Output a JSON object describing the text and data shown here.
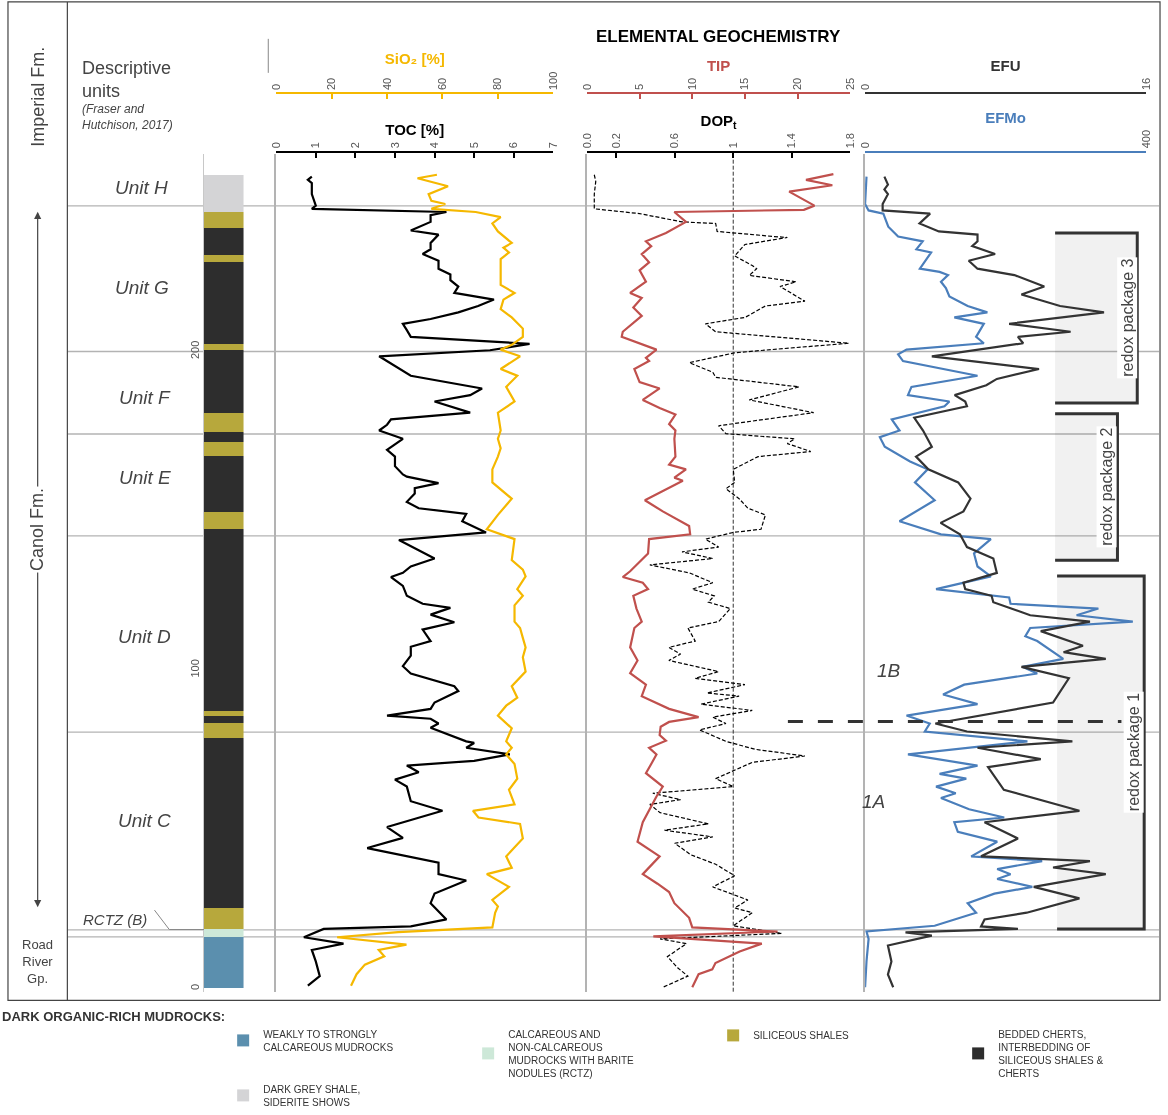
{
  "chart_data": [
    {
      "type": "bar",
      "stacked": true,
      "categories": [
        null
      ],
      "ylim": [
        -1,
        262
      ],
      "yticks": [
        0,
        100,
        200
      ],
      "tick_labels": "y",
      "legend": "bottom",
      "legend_title": "DARK ORGANIC-RICH MUDROCKS:",
      "annotations": [
        "Descriptive units",
        "(Fraser and Hutchison, 2017)",
        "Imperial Fm.",
        "Canol Fm.",
        "Unit H",
        "Unit G",
        "Unit F",
        "Unit E",
        "Unit D",
        "Unit C",
        "RCTZ (B)",
        "Road River Gp."
      ],
      "ref_lines": [
        {
          "axis": "y",
          "value": 245.7,
          "color": "#b3b3b3"
        },
        {
          "axis": "y",
          "value": 200.0,
          "color": "#b3b3b3"
        },
        {
          "axis": "y",
          "value": 174.1,
          "color": "#b3b3b3"
        },
        {
          "axis": "y",
          "value": 142.1,
          "color": "#b3b3b3"
        },
        {
          "axis": "y",
          "value": 80.5,
          "color": "#b3b3b3"
        },
        {
          "axis": "y",
          "value": 18.4,
          "color": "#b3b3b3"
        },
        {
          "axis": "y",
          "value": 16.2,
          "color": "#b3b3b3"
        }
      ],
      "series": [
        {
          "name": "WEAKLY TO STRONGLY CALCAREOUS MUDROCKS",
          "color": "#5b8fae",
          "values": [
            16.2
          ]
        },
        {
          "name": "CALCAREOUS AND NON-CALCAREOUS MUDROCKS WITH BARITE NODULES (RCTZ)",
          "color": "#cde8d8",
          "values": [
            2.4
          ]
        },
        {
          "name": "SILICEOUS SHALES",
          "color": "#b7a83c",
          "values": [
            6.7
          ]
        },
        {
          "name": "BEDDED CHERTS, INTERBEDDING OF SILICEOUS SHALES & CHERTS",
          "color": "#2d2d2d",
          "values": [
            53.4
          ]
        },
        {
          "color": "#b7a83c",
          "values": [
            4.5
          ]
        },
        {
          "color": "#2d2d2d",
          "values": [
            2.2
          ]
        },
        {
          "color": "#b7a83c",
          "values": [
            1.8
          ]
        },
        {
          "color": "#2d2d2d",
          "values": [
            57.0
          ]
        },
        {
          "color": "#b7a83c",
          "values": [
            5.5
          ]
        },
        {
          "color": "#2d2d2d",
          "values": [
            17.4
          ]
        },
        {
          "color": "#b7a83c",
          "values": [
            4.5
          ]
        },
        {
          "color": "#2d2d2d",
          "values": [
            3.1
          ]
        },
        {
          "color": "#b7a83c",
          "values": [
            6.1
          ]
        },
        {
          "color": "#2d2d2d",
          "values": [
            19.8
          ]
        },
        {
          "color": "#b7a83c",
          "values": [
            1.8
          ]
        },
        {
          "color": "#2d2d2d",
          "values": [
            25.6
          ]
        },
        {
          "color": "#b7a83c",
          "values": [
            2.2
          ]
        },
        {
          "color": "#2d2d2d",
          "values": [
            8.5
          ]
        },
        {
          "color": "#b7a83c",
          "values": [
            5.2
          ]
        },
        {
          "name": "DARK GREY SHALE, SIDERITE SHOWS",
          "color": "#d4d4d6",
          "values": [
            11.6
          ]
        }
      ]
    },
    {
      "type": "line",
      "orientation": "horizontal",
      "xlabel": "TOC [%]",
      "x2label": "SiO₂ [%]",
      "xlim": [
        0,
        7
      ],
      "xticks": [
        0,
        1,
        2,
        3,
        4,
        5,
        6,
        7
      ],
      "x2lim": [
        0,
        100
      ],
      "x2ticks": [
        0,
        20,
        40,
        60,
        80,
        100
      ],
      "ylim": [
        -1,
        262
      ],
      "yticks": [
        0,
        100,
        200
      ],
      "tick_labels": "x",
      "series": [
        {
          "color": "#f5b800",
          "axis": "x2",
          "x": [
            255.5,
            254.4,
            251.9,
            249.4,
            247.3,
            246.3,
            244.8,
            243.8,
            242.2,
            240.2,
            237.7,
            234.1,
            232.6,
            231.1,
            229.0,
            224.5,
            220.9,
            218.4,
            216.3,
            213.3,
            210.7,
            207.2,
            204.6,
            202.1,
            200.6,
            198.5,
            194.5,
            192.4,
            188.9,
            184.3,
            180.8,
            175.2,
            172.6,
            169.6,
            167.0,
            163.0,
            158.9,
            153.8,
            148.7,
            144.2,
            141.1,
            134.5,
            131.5,
            129.4,
            125.4,
            123.3,
            120.3,
            115.2,
            113.2,
            110.1,
            107.1,
            104.0,
            99.5,
            94.9,
            91.3,
            88.8,
            85.7,
            81.7,
            77.6,
            75.6,
            73.5,
            70.5,
            65.9,
            62.4,
            57.8,
            55.8,
            53.7,
            51.7,
            47.1,
            41.5,
            37.9,
            35.9,
            31.9,
            27.8,
            25.8,
            23.8,
            19.2,
            17.7,
            16.1,
            13.8,
            12.1,
            10.1,
            7.5,
            4.5,
            0.9
          ],
          "values": [
            58,
            51,
            62,
            55,
            56,
            61,
            56,
            72,
            81,
            78,
            80,
            85,
            82,
            84,
            81,
            81,
            81,
            86,
            82,
            81,
            85,
            89,
            89,
            85,
            81,
            88,
            81,
            87,
            83,
            86,
            80,
            81,
            80,
            81,
            80,
            78,
            78,
            85,
            80,
            76,
            86,
            85,
            89,
            90,
            87,
            89,
            86,
            86,
            88,
            89,
            90,
            89,
            90,
            85,
            87,
            83,
            80,
            85,
            83,
            85,
            83,
            86,
            87,
            84,
            86,
            71,
            73,
            88,
            89,
            83,
            85,
            76,
            84,
            78,
            80,
            79,
            78,
            44,
            22,
            47,
            37,
            39,
            32,
            29,
            27
          ]
        },
        {
          "color": "#000000",
          "x": [
            254.9,
            253.9,
            252.9,
            249.4,
            245.8,
            244.8,
            243.8,
            242.8,
            240.7,
            238.0,
            236.7,
            234.1,
            232.1,
            230.6,
            228.5,
            226.0,
            224.2,
            222.4,
            220.4,
            218.4,
            216.3,
            214.3,
            212.3,
            210.2,
            208.7,
            206.7,
            204.6,
            202.4,
            200.4,
            198.5,
            192.4,
            188.4,
            186.3,
            184.3,
            180.8,
            178.7,
            177.0,
            175.2,
            172.6,
            169.1,
            167.0,
            164.0,
            161.4,
            160.7,
            158.7,
            157.1,
            155.4,
            152.8,
            150.8,
            149.0,
            146.7,
            143.2,
            140.8,
            135.0,
            132.5,
            130.5,
            129.2,
            126.4,
            123.3,
            120.8,
            119.5,
            117.4,
            115.0,
            112.7,
            109.1,
            107.3,
            104.5,
            101.2,
            98.9,
            94.9,
            93.4,
            89.8,
            87.8,
            85.7,
            84.7,
            83.2,
            81.9,
            77.6,
            77.1,
            75.6,
            73.5,
            71.5,
            70.0,
            67.9,
            65.6,
            63.4,
            58.8,
            55.8,
            50.7,
            47.3,
            44.1,
            39.5,
            35.9,
            33.9,
            29.8,
            26.8,
            21.7,
            19.5,
            18.7,
            16.1,
            14.1,
            12.1,
            8.5,
            3.9,
            0.9
          ],
          "values": [
            0.9,
            0.8,
            0.9,
            0.9,
            1.0,
            0.9,
            4.3,
            3.9,
            3.9,
            3.4,
            4.1,
            3.9,
            3.9,
            3.7,
            4.1,
            4.1,
            4.4,
            4.4,
            4.6,
            4.5,
            5.5,
            5.1,
            4.6,
            3.9,
            3.2,
            3.3,
            3.4,
            6.4,
            5.4,
            2.6,
            3.4,
            5.2,
            4.9,
            4.0,
            4.9,
            2.9,
            2.8,
            2.6,
            3.2,
            2.8,
            3.0,
            3.0,
            3.2,
            3.3,
            4.1,
            3.5,
            3.5,
            3.3,
            3.6,
            4.8,
            4.7,
            5.3,
            3.1,
            4.0,
            3.4,
            3.2,
            2.9,
            3.2,
            3.3,
            3.7,
            4.4,
            3.9,
            4.5,
            3.7,
            3.9,
            3.4,
            3.4,
            3.2,
            3.4,
            4.5,
            4.6,
            4.0,
            3.9,
            2.8,
            3.9,
            4.1,
            3.9,
            4.8,
            5.0,
            4.8,
            5.9,
            5.0,
            3.3,
            3.6,
            3.0,
            3.3,
            3.4,
            4.2,
            2.8,
            3.2,
            2.3,
            4.1,
            4.1,
            4.8,
            4.0,
            3.9,
            4.3,
            3.4,
            1.2,
            0.7,
            1.7,
            0.9,
            1.0,
            1.1,
            0.8
          ]
        }
      ]
    },
    {
      "type": "line",
      "orientation": "horizontal",
      "title": "ELEMENTAL GEOCHEMISTRY",
      "xlabel": "DOP$_{t}$",
      "x2label": "TIP",
      "xlim": [
        0,
        1.8
      ],
      "xticks": [
        {
          "value": 0,
          "label": "0.0"
        },
        0.2,
        0.6,
        1,
        1.4,
        1.8
      ],
      "x2lim": [
        0,
        25
      ],
      "x2ticks": [
        0,
        5,
        10,
        15,
        20,
        25
      ],
      "ylim": [
        -1,
        262
      ],
      "yticks": [
        0,
        100,
        200
      ],
      "tick_labels": "x",
      "ref_lines": [
        {
          "axis": "x",
          "value": 1,
          "line_style": "dashed",
          "color": "#333333"
        }
      ],
      "series": [
        {
          "color": "#000000",
          "line_style": "dashed",
          "x": [
            255.5,
            253.4,
            249.4,
            244.8,
            243.3,
            240.7,
            240.2,
            237.7,
            236.1,
            235.8,
            233.6,
            230.0,
            227.0,
            226.0,
            223.9,
            221.9,
            220.4,
            215.8,
            214.3,
            210.7,
            208.7,
            206.2,
            202.6,
            200.6,
            199.6,
            196.5,
            193.5,
            191.9,
            188.9,
            184.8,
            180.8,
            176.7,
            174.2,
            172.6,
            171.1,
            168.6,
            167.0,
            163.0,
            158.9,
            156.9,
            153.8,
            150.8,
            148.7,
            144.2,
            143.2,
            141.1,
            138.6,
            137.1,
            135.0,
            133.0,
            130.5,
            127.4,
            125.4,
            123.3,
            121.3,
            119.3,
            115.2,
            113.2,
            109.1,
            107.1,
            105.0,
            103.0,
            99.5,
            97.4,
            95.4,
            92.8,
            91.8,
            89.3,
            87.3,
            85.2,
            83.2,
            81.2,
            77.6,
            75.1,
            73.0,
            71.0,
            65.9,
            63.4,
            61.3,
            59.3,
            57.8,
            55.2,
            51.7,
            49.7,
            47.6,
            45.6,
            42.0,
            39.0,
            35.4,
            31.9,
            27.8,
            25.3,
            23.8,
            19.7,
            17.3,
            15.6,
            14.1,
            10.0,
            6.5,
            3.9,
            0.4
          ],
          "values": [
            0.05,
            0.06,
            0.05,
            0.05,
            0.36,
            0.65,
            0.88,
            0.89,
            1.28,
            1.37,
            1.08,
            1.01,
            1.13,
            1.16,
            1.11,
            1.43,
            1.32,
            1.49,
            1.22,
            1.08,
            0.81,
            0.88,
            1.79,
            1.26,
            1.01,
            0.7,
            0.86,
            0.88,
            1.45,
            1.11,
            1.55,
            0.9,
            0.95,
            1.42,
            1.37,
            1.53,
            1.17,
            1.0,
            1.01,
            0.95,
            1.04,
            1.1,
            1.22,
            1.19,
            1.0,
            0.81,
            0.9,
            0.65,
            0.86,
            0.43,
            0.7,
            0.86,
            0.72,
            0.87,
            0.83,
            0.98,
            0.9,
            0.69,
            0.74,
            0.56,
            0.64,
            0.56,
            0.9,
            0.74,
            1.08,
            0.82,
            1.04,
            0.78,
            1.13,
            0.86,
            0.95,
            0.77,
            0.95,
            1.15,
            1.49,
            1.13,
            0.88,
            1.0,
            0.45,
            0.64,
            0.43,
            0.5,
            0.83,
            0.53,
            0.86,
            0.6,
            0.71,
            0.88,
            1.01,
            0.86,
            1.1,
            1.01,
            1.13,
            1.0,
            1.33,
            0.5,
            0.68,
            0.55,
            0.62,
            0.69,
            0.52
          ]
        },
        {
          "color": "#c0504d",
          "axis": "x2",
          "x": [
            255.7,
            253.9,
            252.2,
            250.2,
            245.8,
            244.5,
            243.8,
            240.7,
            237.2,
            234.6,
            233.1,
            230.6,
            228.0,
            225.5,
            221.9,
            218.4,
            216.8,
            213.8,
            211.2,
            206.2,
            204.6,
            200.6,
            198.0,
            197.0,
            194.5,
            190.4,
            188.4,
            184.8,
            182.3,
            180.2,
            177.2,
            175.2,
            172.6,
            167.0,
            164.5,
            163.0,
            160.4,
            159.4,
            153.3,
            149.8,
            145.2,
            142.6,
            141.1,
            136.6,
            131.0,
            129.2,
            127.4,
            125.4,
            123.3,
            119.3,
            115.2,
            113.2,
            107.1,
            103.0,
            99.0,
            95.4,
            91.8,
            87.8,
            85.2,
            83.7,
            82.2,
            79.6,
            77.8,
            75.6,
            73.5,
            70.5,
            67.6,
            63.4,
            60.3,
            52.2,
            46.1,
            41.5,
            35.9,
            32.9,
            30.3,
            26.8,
            22.2,
            19.2,
            17.9,
            16.4,
            14.1,
            11.6,
            8.0,
            6.0,
            4.5,
            0.4
          ],
          "values": [
            23.4,
            20.8,
            23.3,
            19.2,
            21.6,
            20.6,
            8.3,
            9.4,
            7.5,
            5.6,
            6.1,
            5.2,
            5.9,
            5.0,
            5.6,
            4.1,
            5.2,
            4.4,
            5.2,
            3.4,
            3.3,
            6.6,
            5.6,
            5.9,
            4.5,
            5.0,
            6.9,
            5.3,
            6.9,
            8.4,
            7.8,
            8.4,
            8.3,
            8.4,
            7.8,
            9.4,
            8.3,
            9.1,
            5.5,
            7.2,
            9.7,
            9.8,
            5.9,
            5.8,
            4.1,
            3.4,
            5.3,
            5.8,
            4.4,
            4.7,
            5.2,
            4.5,
            4.1,
            4.8,
            4.1,
            5.6,
            5.2,
            7.8,
            10.6,
            7.8,
            7.0,
            6.9,
            7.5,
            5.9,
            6.6,
            6.1,
            5.6,
            7.2,
            6.6,
            5.3,
            4.8,
            6.9,
            5.3,
            6.7,
            7.8,
            8.3,
            9.7,
            10.0,
            18.1,
            6.3,
            16.6,
            14.5,
            12.2,
            11.9,
            10.6,
            10.0
          ]
        }
      ]
    },
    {
      "type": "line",
      "orientation": "horizontal",
      "xlabel": "EFMo",
      "x2label": "EFU",
      "xlim": [
        0,
        400
      ],
      "xticks": [
        0,
        400
      ],
      "x2lim": [
        0,
        16
      ],
      "x2ticks": [
        0,
        16
      ],
      "ylim": [
        -1,
        262
      ],
      "yticks": [
        0,
        100,
        200
      ],
      "tick_labels": "x",
      "annotations": [
        "1B",
        "1A"
      ],
      "ref_lines": [
        {
          "axis": "y",
          "value": 83.8,
          "line_style": "dashed",
          "color": "#333333"
        }
      ],
      "bands": [
        {
          "axis": "y",
          "from": 237.2,
          "to": 183.8,
          "label": "redox package 3",
          "color": "#333333"
        },
        {
          "axis": "y",
          "from": 180.5,
          "to": 134.5,
          "label": "redox package 2",
          "color": "#333333"
        },
        {
          "axis": "y",
          "from": 129.5,
          "to": 18.7,
          "label": "redox package 1",
          "color": "#333333"
        }
      ],
      "series": [
        {
          "color": "#333333",
          "axis": "x2",
          "x": [
            254.9,
            252.4,
            250.9,
            249.4,
            246.3,
            244.3,
            243.3,
            240.2,
            237.7,
            236.7,
            234.6,
            233.1,
            230.6,
            228.5,
            226.0,
            224.0,
            220.4,
            217.9,
            214.3,
            212.3,
            208.7,
            206.2,
            204.6,
            202.6,
            198.5,
            194.5,
            191.4,
            189.4,
            186.3,
            184.3,
            182.8,
            179.2,
            175.2,
            170.1,
            167.0,
            163.0,
            158.9,
            153.8,
            149.8,
            146.2,
            142.6,
            138.6,
            135.0,
            130.5,
            127.4,
            125.4,
            123.3,
            121.3,
            117.2,
            115.2,
            112.2,
            107.6,
            105.6,
            103.5,
            101.0,
            97.4,
            89.8,
            83.2,
            80.7,
            77.6,
            75.6,
            72.0,
            69.5,
            62.4,
            55.8,
            52.2,
            47.1,
            41.5,
            40.0,
            38.0,
            35.9,
            31.9,
            28.3,
            23.8,
            21.7,
            19.5,
            18.7,
            17.6,
            16.6,
            13.5,
            8.5,
            4.4,
            0.4
          ],
          "values": [
            1.1,
            1.3,
            1.1,
            1.3,
            1.0,
            1.0,
            3.7,
            3.1,
            4.2,
            6.4,
            6.4,
            6.1,
            7.4,
            5.9,
            6.4,
            8.5,
            10.2,
            8.9,
            11.1,
            13.6,
            8.2,
            11.7,
            8.7,
            9.0,
            3.8,
            9.9,
            7.5,
            6.9,
            5.1,
            5.7,
            5.8,
            2.8,
            3.3,
            3.8,
            2.9,
            3.6,
            5.3,
            6.0,
            5.6,
            4.3,
            5.4,
            5.8,
            7.3,
            7.5,
            5.6,
            5.7,
            7.2,
            7.3,
            9.4,
            12.8,
            10.0,
            12.4,
            11.3,
            13.7,
            8.9,
            11.6,
            10.7,
            4.0,
            5.8,
            11.8,
            6.4,
            10.0,
            7.0,
            7.9,
            12.2,
            6.8,
            8.7,
            6.6,
            12.8,
            10.7,
            13.7,
            9.6,
            12.2,
            9.2,
            6.8,
            6.6,
            8.7,
            2.3,
            3.8,
            1.3,
            1.5,
            1.3,
            1.6
          ]
        },
        {
          "color": "#4a7ebb",
          "x": [
            254.9,
            246.3,
            244.3,
            243.3,
            239.2,
            236.1,
            234.6,
            232.1,
            231.1,
            226.0,
            225.0,
            224.0,
            221.9,
            219.9,
            217.3,
            214.3,
            212.3,
            210.7,
            208.7,
            204.6,
            202.6,
            200.6,
            199.1,
            197.0,
            192.4,
            188.9,
            186.3,
            184.3,
            182.8,
            178.7,
            175.2,
            173.1,
            170.1,
            165.5,
            163.0,
            158.9,
            153.3,
            146.7,
            142.6,
            141.1,
            136.6,
            132.5,
            129.4,
            125.4,
            122.8,
            120.8,
            119.3,
            117.2,
            115.2,
            113.2,
            110.6,
            109.1,
            103.5,
            101.0,
            98.9,
            95.4,
            92.3,
            89.3,
            85.7,
            83.2,
            80.7,
            77.6,
            73.5,
            70.0,
            67.4,
            65.9,
            63.4,
            61.3,
            59.8,
            56.3,
            53.7,
            52.2,
            49.2,
            46.1,
            41.5,
            40.0,
            37.5,
            35.9,
            34.4,
            31.9,
            29.8,
            26.8,
            23.8,
            19.7,
            17.9,
            15.6,
            8.5,
            0.4
          ],
          "values": [
            2,
            0,
            5,
            26,
            33,
            47,
            82,
            73,
            94,
            78,
            106,
            118,
            108,
            115,
            120,
            146,
            174,
            127,
            169,
            158,
            169,
            59,
            47,
            54,
            160,
            66,
            61,
            120,
            113,
            38,
            49,
            21,
            28,
            64,
            89,
            71,
            99,
            49,
            108,
            179,
            155,
            160,
            179,
            101,
            205,
            207,
            332,
            301,
            381,
            235,
            228,
            245,
            282,
            224,
            245,
            141,
            111,
            160,
            59,
            92,
            85,
            231,
            61,
            160,
            106,
            144,
            101,
            129,
            108,
            148,
            198,
            127,
            132,
            188,
            151,
            252,
            188,
            207,
            188,
            238,
            184,
            146,
            158,
            99,
            2,
            5,
            2,
            0
          ]
        }
      ]
    }
  ]
}
